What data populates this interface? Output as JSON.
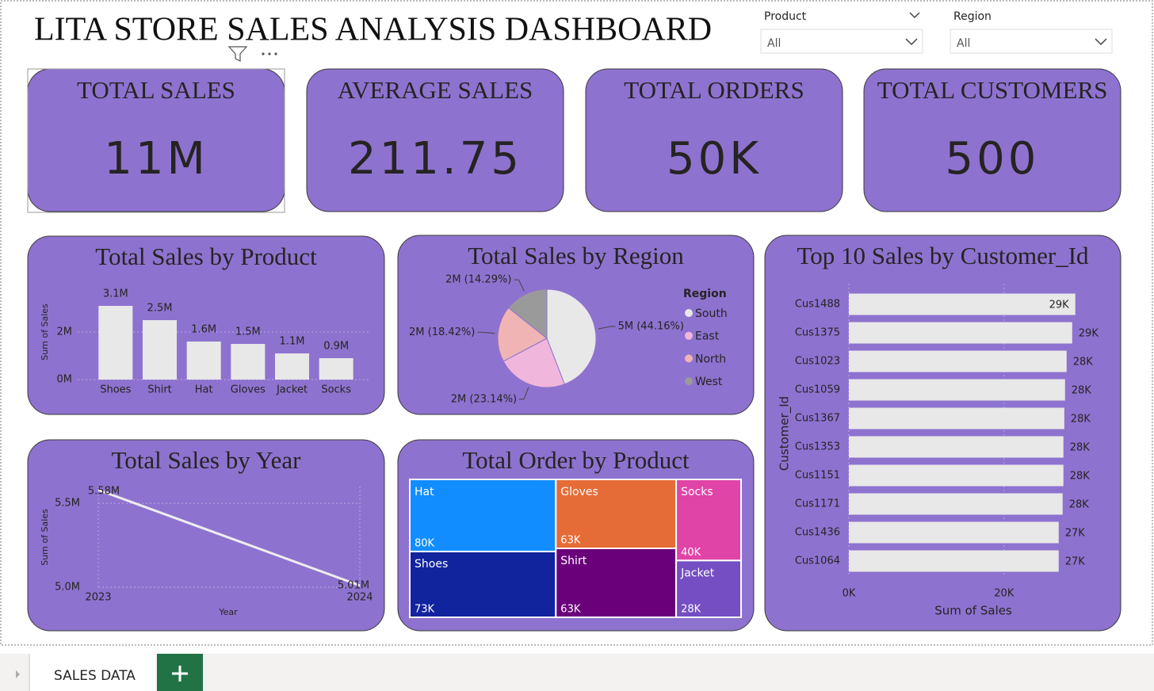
{
  "header": {
    "title": "LITA STORE SALES ANALYSIS DASHBOARD"
  },
  "filters": [
    {
      "label": "Product",
      "value": "All"
    },
    {
      "label": "Region",
      "value": "All"
    }
  ],
  "kpis": [
    {
      "label": "TOTAL SALES",
      "value": "11M"
    },
    {
      "label": "AVERAGE SALES",
      "value": "211.75"
    },
    {
      "label": "TOTAL ORDERS",
      "value": "50K"
    },
    {
      "label": "TOTAL CUSTOMERS",
      "value": "500"
    }
  ],
  "chart_data": [
    {
      "type": "bar",
      "title": "Total Sales by Product",
      "y_label": "Sum of Sales",
      "categories": [
        "Shoes",
        "Shirt",
        "Hat",
        "Gloves",
        "Jacket",
        "Socks"
      ],
      "values": [
        3100000,
        2500000,
        1600000,
        1500000,
        1100000,
        900000
      ],
      "value_labels": [
        "3.1M",
        "2.5M",
        "1.6M",
        "1.5M",
        "1.1M",
        "0.9M"
      ],
      "color": "#e8e8e8",
      "ylim": [
        0,
        4000000
      ],
      "yticks": [
        {
          "value": 0,
          "label": "0M"
        },
        {
          "value": 2000000,
          "label": "2M"
        }
      ],
      "grid": true
    },
    {
      "type": "pie",
      "title": "Total Sales by Region",
      "legend_title": "Region",
      "categories": [
        "South",
        "East",
        "North",
        "West"
      ],
      "values": [
        44.16,
        23.14,
        18.42,
        14.29
      ],
      "value_labels": [
        "5M (44.16%)",
        "2M (23.14%)",
        "2M (18.42%)",
        "2M (14.29%)"
      ],
      "colors": [
        "#e8e8e8",
        "#f0b6dc",
        "#f0b4b4",
        "#9a9a9a"
      ],
      "legend": "right"
    },
    {
      "type": "hbar",
      "title": "Top 10 Sales by Customer_Id",
      "x_label": "Sum of Sales",
      "y_label": "Customer_Id",
      "categories": [
        "Cus1488",
        "Cus1375",
        "Cus1023",
        "Cus1059",
        "Cus1367",
        "Cus1353",
        "Cus1151",
        "Cus1171",
        "Cus1436",
        "Cus1064"
      ],
      "values": [
        29180,
        28780,
        28060,
        27860,
        27760,
        27650,
        27650,
        27550,
        27040,
        27040
      ],
      "value_labels": [
        "29K",
        "29K",
        "28K",
        "28K",
        "28K",
        "28K",
        "28K",
        "28K",
        "27K",
        "27K"
      ],
      "color": "#e8e8e8",
      "xlim": [
        0,
        33500
      ],
      "xticks": [
        {
          "value": 0,
          "label": "0K"
        },
        {
          "value": 20000,
          "label": "20K"
        }
      ],
      "grid": true
    },
    {
      "type": "line",
      "title": "Total Sales by Year",
      "x_label": "Year",
      "y_label": "Sum of Sales",
      "x": [
        2023,
        2024
      ],
      "xlim": [
        2023,
        2024
      ],
      "xticks": [
        2023,
        2024
      ],
      "values": [
        5580000,
        5010000
      ],
      "value_labels": [
        "5.58M",
        "5.01M"
      ],
      "ylim": [
        5000000,
        5600000
      ],
      "yticks": [
        {
          "value": 5000000,
          "label": "5.0M"
        },
        {
          "value": 5500000,
          "label": "5.5M"
        }
      ],
      "color": "#eeeeee",
      "grid": true
    },
    {
      "type": "treemap",
      "title": "Total Order by Product",
      "categories": [
        "Hat",
        "Shoes",
        "Gloves",
        "Shirt",
        "Socks",
        "Jacket"
      ],
      "values": [
        80000,
        73000,
        63000,
        63000,
        40000,
        28000
      ],
      "value_labels": [
        "80K",
        "73K",
        "63K",
        "63K",
        "40K",
        "28K"
      ],
      "colors": [
        "#118dff",
        "#12239e",
        "#e66c37",
        "#6b007b",
        "#e044a7",
        "#744ec2"
      ]
    }
  ],
  "tabs": [
    "SALES DATA"
  ]
}
